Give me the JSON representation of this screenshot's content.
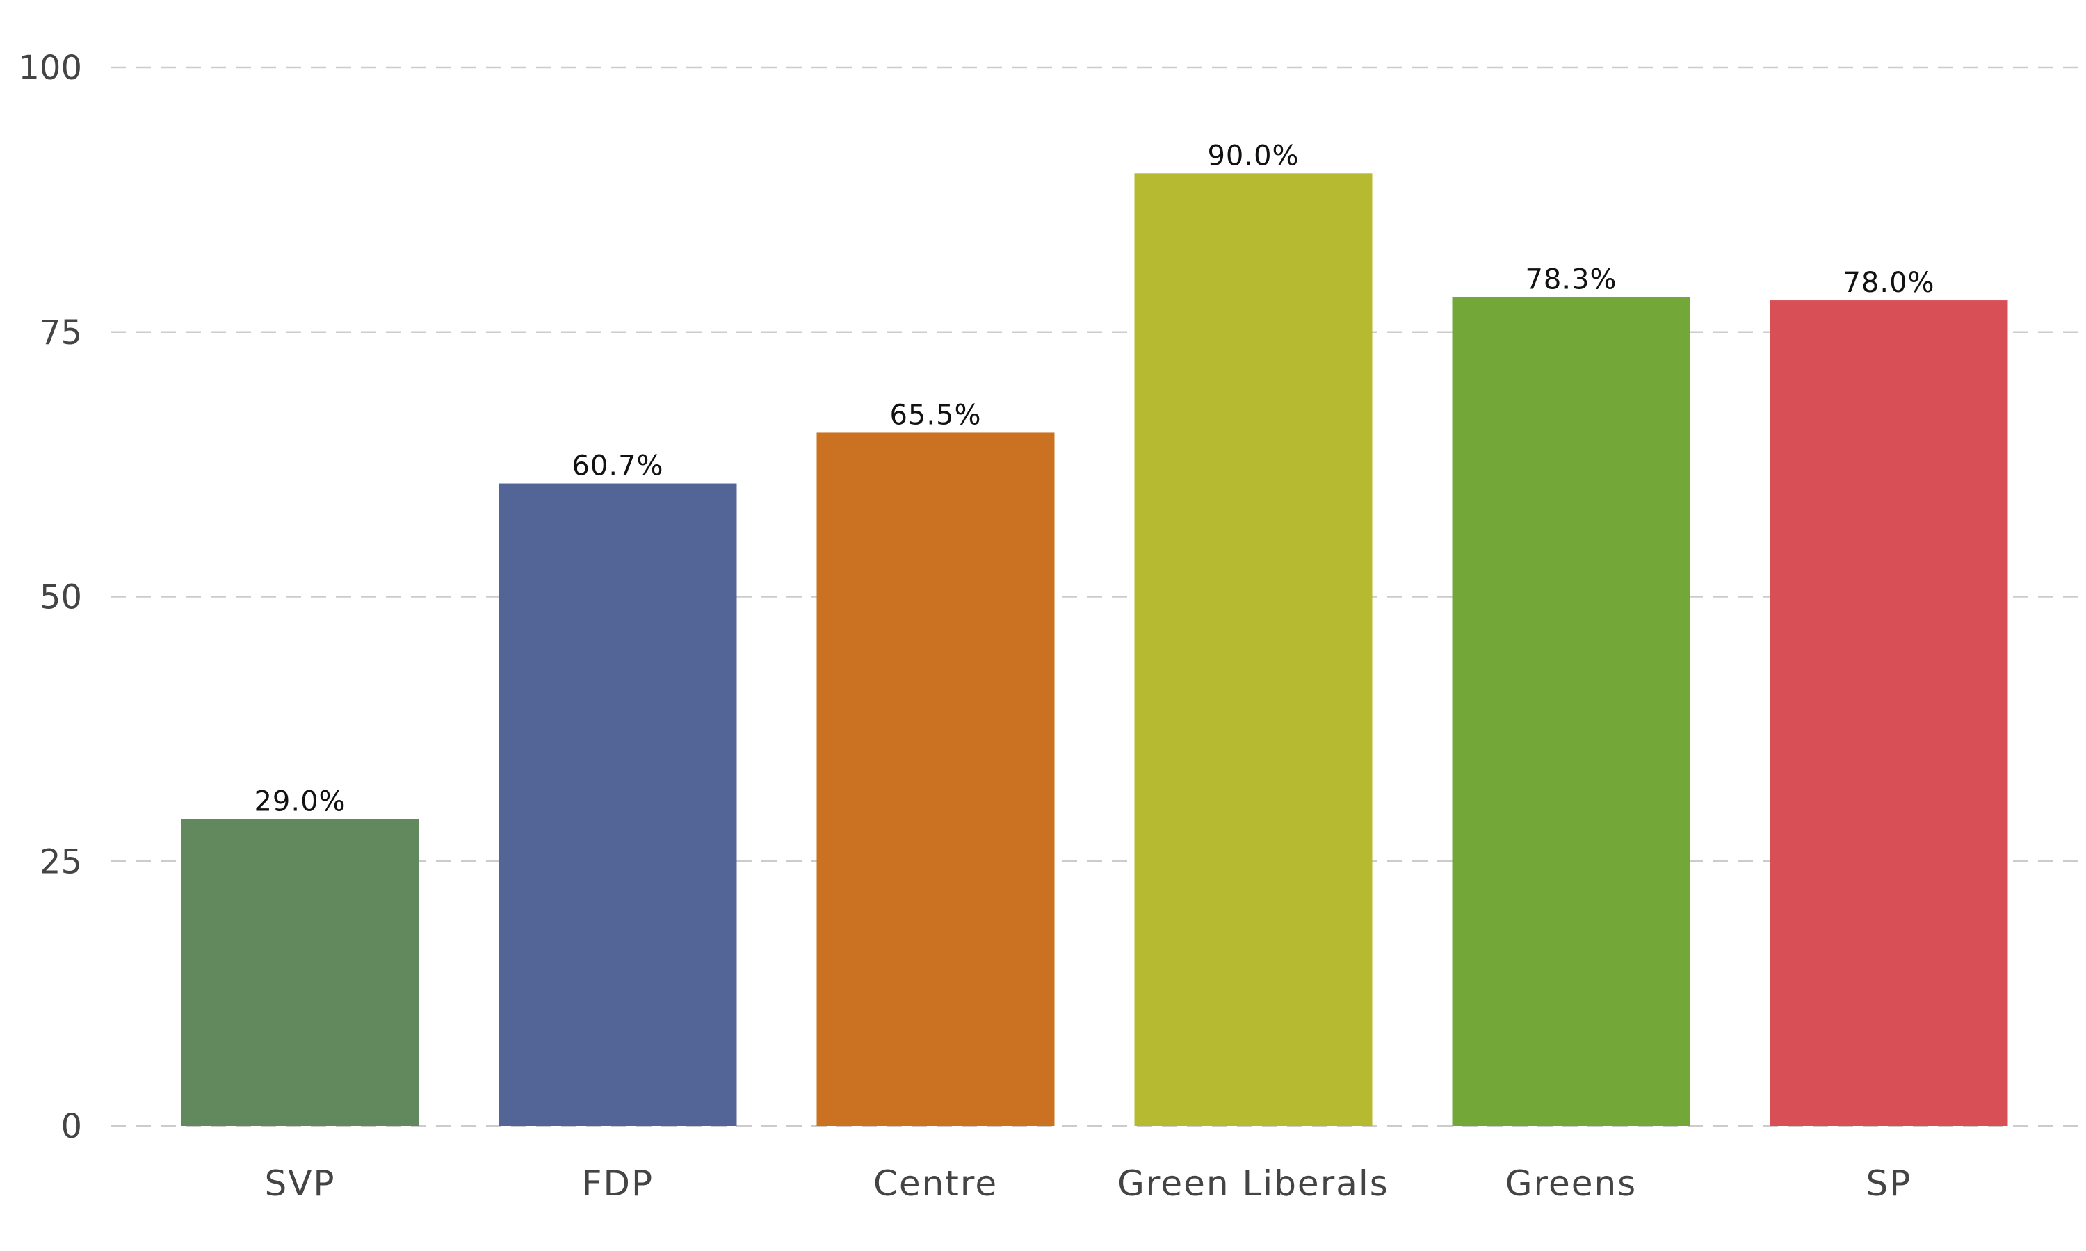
{
  "chart_data": {
    "type": "bar",
    "title": "",
    "xlabel": "",
    "ylabel": "",
    "ylim": [
      0,
      100
    ],
    "yticks": [
      0,
      25,
      50,
      75,
      100
    ],
    "grid": true,
    "legend": "none",
    "categories": [
      "SVP",
      "FDP",
      "Centre",
      "Green Liberals",
      "Greens",
      "SP"
    ],
    "values": [
      29.0,
      60.7,
      65.5,
      90.0,
      78.3,
      78.0
    ],
    "data_labels": [
      "29.0%",
      "60.7%",
      "65.5%",
      "90.0%",
      "78.3%",
      "78.0%"
    ],
    "colors": [
      "#62895d",
      "#536496",
      "#cb7222",
      "#b6ba31",
      "#73a838",
      "#d85055"
    ]
  }
}
